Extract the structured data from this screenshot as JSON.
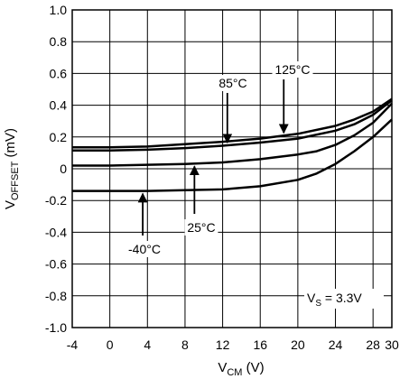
{
  "chart_data": {
    "type": "line",
    "xlabel": "V",
    "xlabel_sub": "CM",
    "xlabel_unit": " (V)",
    "ylabel": "V",
    "ylabel_sub": "OFFSET",
    "ylabel_unit": " (mV)",
    "xlim": [
      -4,
      30
    ],
    "ylim": [
      -1.0,
      1.0
    ],
    "x_ticks": [
      -4,
      0,
      4,
      8,
      12,
      16,
      20,
      24,
      28,
      30
    ],
    "x_tick_labels": [
      "-4",
      "0",
      "4",
      "8",
      "12",
      "16",
      "20",
      "24",
      "28",
      "30"
    ],
    "y_ticks": [
      1.0,
      0.8,
      0.6,
      0.4,
      0.2,
      0,
      -0.2,
      -0.4,
      -0.6,
      -0.8,
      -1.0
    ],
    "y_tick_labels": [
      "1.0",
      "0.8",
      "0.6",
      "0.4",
      "0.2",
      "0",
      "-0.2",
      "-0.4",
      "-0.6",
      "-0.8",
      "-1.0"
    ],
    "grid": true,
    "series": [
      {
        "name": "125°C",
        "x": [
          -4,
          0,
          4,
          8,
          12,
          16,
          20,
          24,
          26,
          28,
          30
        ],
        "y": [
          0.135,
          0.135,
          0.14,
          0.155,
          0.17,
          0.19,
          0.22,
          0.27,
          0.31,
          0.36,
          0.44
        ]
      },
      {
        "name": "85°C",
        "x": [
          -4,
          0,
          4,
          8,
          12,
          16,
          20,
          24,
          26,
          28,
          30
        ],
        "y": [
          0.115,
          0.115,
          0.12,
          0.13,
          0.145,
          0.165,
          0.19,
          0.24,
          0.28,
          0.34,
          0.43
        ]
      },
      {
        "name": "25°C",
        "x": [
          -4,
          0,
          4,
          8,
          12,
          16,
          20,
          22,
          24,
          26,
          28,
          30
        ],
        "y": [
          0.02,
          0.02,
          0.025,
          0.03,
          0.04,
          0.06,
          0.09,
          0.11,
          0.15,
          0.21,
          0.29,
          0.41
        ]
      },
      {
        "name": "-40°C",
        "x": [
          -4,
          0,
          4,
          8,
          12,
          16,
          20,
          22,
          24,
          26,
          28,
          30
        ],
        "y": [
          -0.14,
          -0.14,
          -0.14,
          -0.135,
          -0.13,
          -0.11,
          -0.07,
          -0.03,
          0.03,
          0.11,
          0.2,
          0.31
        ]
      }
    ],
    "annotations": [
      {
        "text": "125°C",
        "series": "125°C",
        "arrow_to_x": 18.5
      },
      {
        "text": "85°C",
        "series": "85°C",
        "arrow_to_x": 12.5
      },
      {
        "text": "25°C",
        "series": "25°C",
        "arrow_to_x": 9.0
      },
      {
        "text": "-40°C",
        "series": "-40°C",
        "arrow_to_x": 3.5
      }
    ],
    "condition_label": {
      "prefix": "V",
      "sub": "S",
      "suffix": " = 3.3V"
    }
  }
}
